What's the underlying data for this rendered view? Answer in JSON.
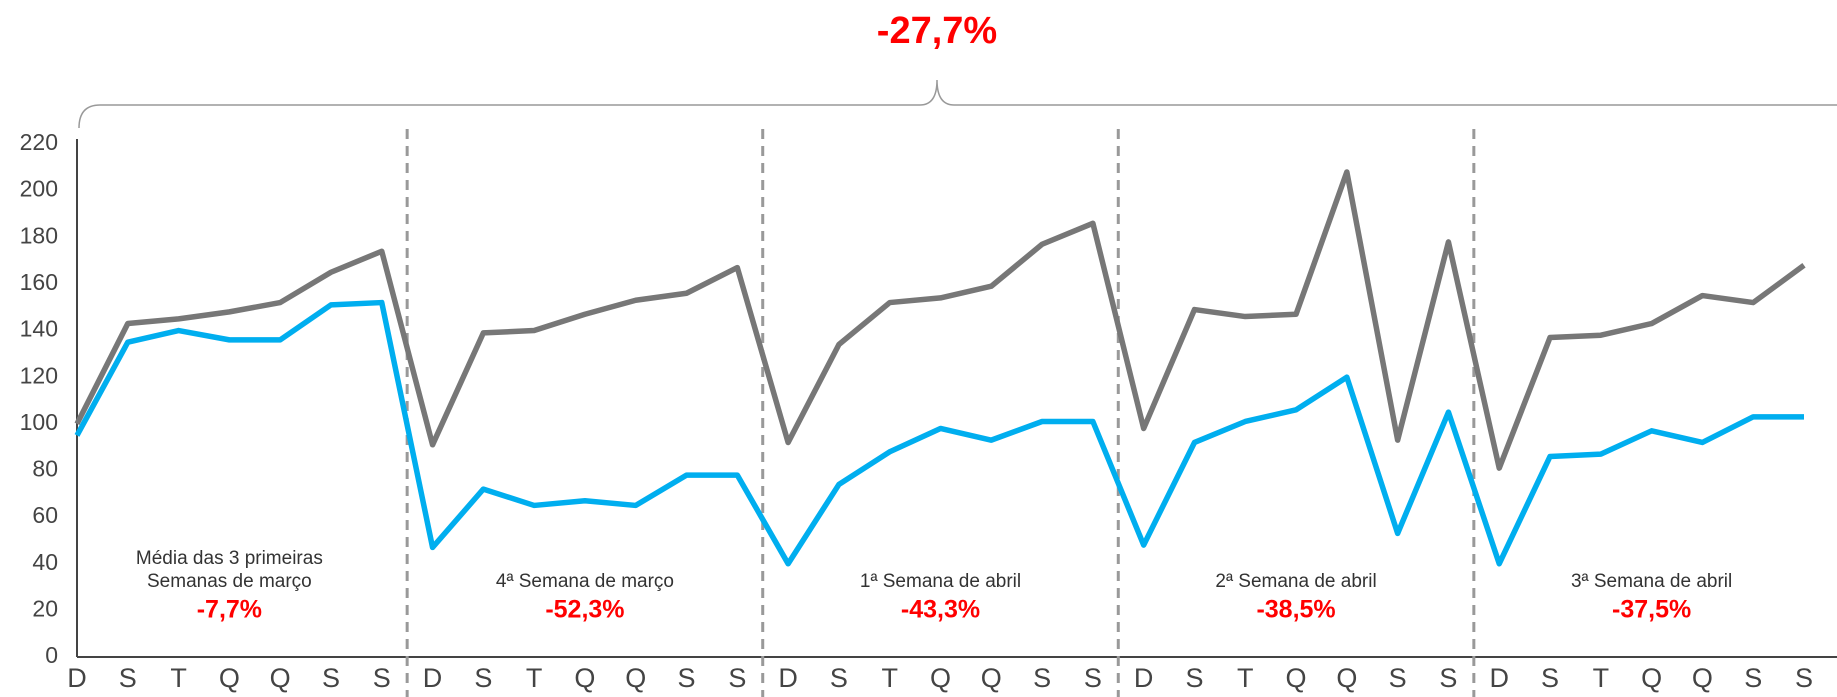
{
  "chart_data": {
    "type": "line",
    "categories": [
      "D",
      "S",
      "T",
      "Q",
      "Q",
      "S",
      "S",
      "D",
      "S",
      "T",
      "Q",
      "Q",
      "S",
      "S",
      "D",
      "S",
      "T",
      "Q",
      "Q",
      "S",
      "S",
      "D",
      "S",
      "T",
      "Q",
      "Q",
      "S",
      "S",
      "D",
      "S",
      "T",
      "Q",
      "Q",
      "S",
      "S"
    ],
    "series": [
      {
        "color": "#777777",
        "values": [
          100,
          143,
          145,
          148,
          152,
          165,
          174,
          91,
          139,
          140,
          147,
          153,
          156,
          167,
          92,
          134,
          152,
          154,
          159,
          177,
          186,
          98,
          149,
          146,
          147,
          208,
          93,
          178,
          81,
          137,
          138,
          143,
          155,
          152,
          168
        ]
      },
      {
        "color": "#00aeef",
        "values": [
          95,
          135,
          140,
          136,
          136,
          151,
          152,
          47,
          72,
          65,
          67,
          65,
          78,
          78,
          40,
          74,
          88,
          98,
          93,
          101,
          101,
          48,
          92,
          101,
          106,
          120,
          53,
          105,
          40,
          86,
          87,
          97,
          92,
          103,
          103
        ]
      }
    ],
    "ylim": [
      0,
      220
    ],
    "yticks": [
      0,
      20,
      40,
      60,
      80,
      100,
      120,
      140,
      160,
      180,
      200,
      220
    ],
    "grid": false,
    "annotations": {
      "total": "-27,7%",
      "groups": [
        {
          "label": [
            "Média das 3 primeiras",
            "Semanas  de março"
          ],
          "change": "-7,7%"
        },
        {
          "label": [
            "4ª Semana de março"
          ],
          "change": "-52,3%"
        },
        {
          "label": [
            "1ª Semana de abril"
          ],
          "change": "-43,3%"
        },
        {
          "label": [
            "2ª Semana de abril"
          ],
          "change": "-38,5%"
        },
        {
          "label": [
            "3ª Semana de abril"
          ],
          "change": "-37,5%"
        }
      ]
    }
  }
}
